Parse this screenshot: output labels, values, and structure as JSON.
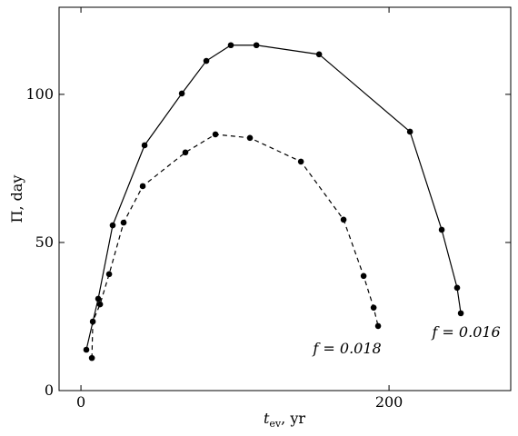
{
  "chart_data": {
    "type": "line",
    "xlabel": "t",
    "xlabel_sub": "ev",
    "xlabel_unit": ", yr",
    "ylabel": "Π, day",
    "xlim": [
      -14.2,
      279
    ],
    "ylim": [
      0,
      129.4
    ],
    "xticks": [
      0,
      200
    ],
    "yticks": [
      0,
      50,
      100
    ],
    "series": [
      {
        "name": "f = 0.016",
        "color": "#000000",
        "dash": false,
        "x": [
          3.5,
          11.2,
          20.6,
          41.3,
          65.5,
          81.4,
          97.3,
          113.9,
          154.6,
          213.6,
          234.2,
          244.2,
          246.6
        ],
        "values": [
          13.8,
          31.0,
          55.8,
          82.8,
          100.3,
          111.3,
          116.6,
          116.6,
          113.5,
          87.4,
          54.3,
          34.7,
          26.1
        ]
      },
      {
        "name": "f = 0.018",
        "color": "#000000",
        "dash": true,
        "x": [
          7.1,
          7.7,
          12.4,
          18.3,
          27.7,
          40.1,
          67.8,
          87.3,
          109.7,
          142.8,
          170.5,
          183.5,
          190.0,
          192.9
        ],
        "values": [
          11.0,
          23.3,
          29.1,
          39.3,
          56.7,
          69.0,
          80.4,
          86.5,
          85.3,
          77.3,
          57.7,
          38.7,
          28.0,
          21.8
        ]
      }
    ]
  }
}
